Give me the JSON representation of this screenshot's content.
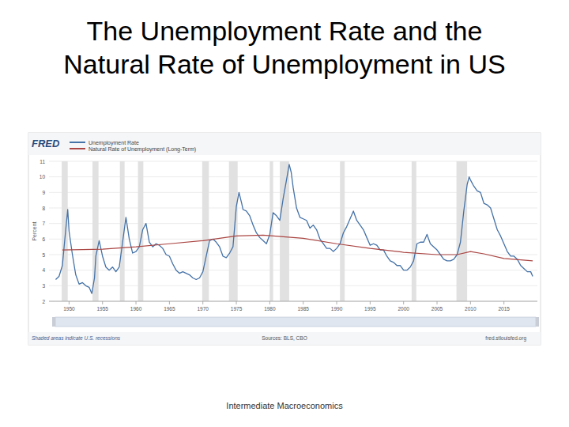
{
  "slide": {
    "title": "The Unemployment Rate and the Natural Rate of Unemployment in US",
    "footer": "Intermediate Macroeconomics"
  },
  "chart_data": {
    "type": "line",
    "logo": "FRED",
    "ylabel": "Percent",
    "note": "Shaded areas indicate U.S. recessions",
    "source": "Sources: BLS, CBO",
    "url": "fred.stlouisfed.org",
    "legend": "top",
    "grid": true,
    "xlim": [
      1947,
      2020
    ],
    "xticks": [
      1950,
      1955,
      1960,
      1965,
      1970,
      1975,
      1980,
      1985,
      1990,
      1995,
      2000,
      2005,
      2010,
      2015
    ],
    "ylim": [
      2,
      11
    ],
    "yticks": [
      2,
      3,
      4,
      5,
      6,
      7,
      8,
      9,
      10,
      11
    ],
    "recessions": [
      [
        1948.9,
        1949.8
      ],
      [
        1953.5,
        1954.4
      ],
      [
        1957.6,
        1958.3
      ],
      [
        1960.3,
        1961.1
      ],
      [
        1969.9,
        1970.9
      ],
      [
        1973.9,
        1975.2
      ],
      [
        1980.0,
        1980.5
      ],
      [
        1981.5,
        1982.9
      ],
      [
        1990.5,
        1991.2
      ],
      [
        2001.2,
        2001.9
      ],
      [
        2007.9,
        2009.5
      ]
    ],
    "series": [
      {
        "name": "Unemployment Rate",
        "color": "#4572a7",
        "x": [
          1948.0,
          1948.5,
          1949.0,
          1949.5,
          1949.8,
          1950.0,
          1950.5,
          1951.0,
          1951.5,
          1952.0,
          1952.5,
          1953.0,
          1953.4,
          1953.8,
          1954.0,
          1954.5,
          1955.0,
          1955.5,
          1956.0,
          1956.5,
          1957.0,
          1957.5,
          1958.0,
          1958.5,
          1959.0,
          1959.5,
          1960.0,
          1960.5,
          1961.0,
          1961.5,
          1962.0,
          1962.5,
          1963.0,
          1963.5,
          1964.0,
          1964.5,
          1965.0,
          1965.5,
          1966.0,
          1966.5,
          1967.0,
          1967.5,
          1968.0,
          1968.5,
          1969.0,
          1969.5,
          1970.0,
          1970.5,
          1971.0,
          1971.5,
          1972.0,
          1972.5,
          1973.0,
          1973.5,
          1974.0,
          1974.5,
          1975.0,
          1975.4,
          1975.8,
          1976.0,
          1976.5,
          1977.0,
          1977.5,
          1978.0,
          1978.5,
          1979.0,
          1979.5,
          1980.0,
          1980.5,
          1981.0,
          1981.5,
          1982.0,
          1982.5,
          1982.9,
          1983.2,
          1983.5,
          1984.0,
          1984.5,
          1985.0,
          1985.5,
          1986.0,
          1986.5,
          1987.0,
          1987.5,
          1988.0,
          1988.5,
          1989.0,
          1989.5,
          1990.0,
          1990.5,
          1991.0,
          1991.5,
          1992.0,
          1992.5,
          1993.0,
          1993.5,
          1994.0,
          1994.5,
          1995.0,
          1995.5,
          1996.0,
          1996.5,
          1997.0,
          1997.5,
          1998.0,
          1998.5,
          1999.0,
          1999.5,
          2000.0,
          2000.5,
          2001.0,
          2001.5,
          2002.0,
          2002.5,
          2003.0,
          2003.5,
          2004.0,
          2004.5,
          2005.0,
          2005.5,
          2006.0,
          2006.5,
          2007.0,
          2007.5,
          2008.0,
          2008.5,
          2009.0,
          2009.5,
          2009.8,
          2010.0,
          2010.5,
          2011.0,
          2011.5,
          2012.0,
          2012.5,
          2013.0,
          2013.5,
          2014.0,
          2014.5,
          2015.0,
          2015.5,
          2016.0,
          2016.5,
          2017.0,
          2017.5,
          2018.0,
          2018.5,
          2019.0,
          2019.3
        ],
        "values": [
          3.4,
          3.6,
          4.3,
          6.6,
          7.9,
          6.5,
          5.0,
          3.7,
          3.1,
          3.2,
          3.0,
          2.9,
          2.5,
          3.5,
          4.9,
          5.9,
          4.9,
          4.2,
          4.0,
          4.2,
          3.9,
          4.2,
          5.8,
          7.4,
          6.0,
          5.1,
          5.2,
          5.5,
          6.6,
          7.0,
          5.8,
          5.5,
          5.7,
          5.6,
          5.4,
          5.0,
          4.9,
          4.4,
          4.0,
          3.8,
          3.9,
          3.8,
          3.7,
          3.5,
          3.4,
          3.5,
          3.9,
          4.9,
          5.9,
          6.0,
          5.8,
          5.5,
          4.9,
          4.8,
          5.1,
          5.5,
          8.1,
          9.0,
          8.3,
          7.9,
          7.8,
          7.5,
          6.9,
          6.4,
          6.1,
          5.9,
          5.7,
          6.3,
          7.7,
          7.5,
          7.2,
          8.6,
          9.8,
          10.8,
          10.3,
          9.3,
          8.0,
          7.4,
          7.3,
          7.2,
          6.7,
          6.9,
          6.6,
          6.0,
          5.7,
          5.4,
          5.4,
          5.2,
          5.4,
          5.7,
          6.4,
          6.8,
          7.3,
          7.8,
          7.2,
          6.9,
          6.6,
          6.1,
          5.6,
          5.7,
          5.6,
          5.3,
          5.3,
          4.9,
          4.6,
          4.5,
          4.3,
          4.3,
          4.0,
          4.0,
          4.2,
          4.6,
          5.7,
          5.8,
          5.8,
          6.3,
          5.7,
          5.5,
          5.3,
          5.0,
          4.7,
          4.6,
          4.6,
          4.7,
          5.0,
          5.8,
          7.8,
          9.5,
          10.0,
          9.8,
          9.4,
          9.1,
          9.0,
          8.3,
          8.2,
          8.0,
          7.3,
          6.6,
          6.2,
          5.7,
          5.2,
          4.9,
          4.9,
          4.7,
          4.3,
          4.1,
          3.9,
          3.9,
          3.6
        ]
      },
      {
        "name": "Natural Rate of Unemployment (Long-Term)",
        "color": "#aa4643",
        "x": [
          1949.0,
          1955.0,
          1960.0,
          1965.0,
          1970.0,
          1975.0,
          1979.0,
          1985.0,
          1990.0,
          1995.0,
          2000.0,
          2005.0,
          2008.0,
          2010.0,
          2012.0,
          2015.0,
          2019.3
        ],
        "values": [
          5.3,
          5.35,
          5.5,
          5.7,
          5.9,
          6.2,
          6.25,
          6.05,
          5.7,
          5.4,
          5.15,
          5.0,
          5.0,
          5.2,
          5.05,
          4.75,
          4.6
        ]
      }
    ]
  }
}
